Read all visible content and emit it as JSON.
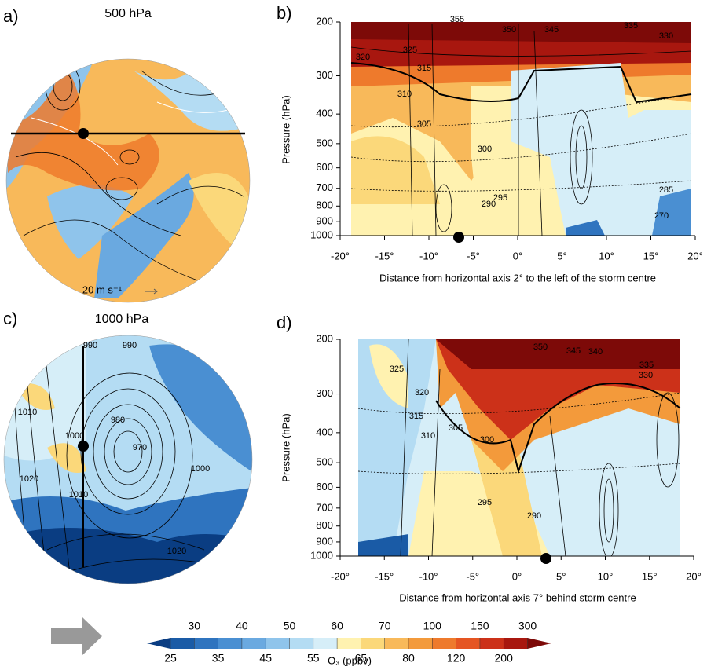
{
  "colorbar": {
    "label": "O₃ (ppbv)",
    "bounds": [
      25,
      30,
      35,
      40,
      45,
      50,
      55,
      60,
      65,
      70,
      80,
      100,
      120,
      150,
      200,
      300
    ],
    "colors": [
      "#0a3d82",
      "#1a5ba6",
      "#2f74bf",
      "#4a8fd2",
      "#6aa9e0",
      "#8fc4eb",
      "#b4dcf3",
      "#d6eef8",
      "#fff2b0",
      "#fbd87a",
      "#f8b95a",
      "#f39a3b",
      "#ee7a2c",
      "#e55522",
      "#cc3119",
      "#a8170f",
      "#7d0a08"
    ]
  },
  "section_axes": {
    "xlim": [
      -20,
      20
    ],
    "xticks": [
      {
        "value": -20,
        "label": "-20°"
      },
      {
        "value": -15,
        "label": "-15°"
      },
      {
        "value": -10,
        "label": "-10°"
      },
      {
        "value": -5,
        "label": "-5°"
      },
      {
        "value": 0,
        "label": "0°"
      },
      {
        "value": 5,
        "label": "5°"
      },
      {
        "value": 10,
        "label": "10°"
      },
      {
        "value": 15,
        "label": "15°"
      },
      {
        "value": 20,
        "label": "20°"
      }
    ],
    "ylim": [
      200,
      1000
    ],
    "yticks": [
      200,
      300,
      400,
      500,
      600,
      700,
      800,
      900,
      1000
    ],
    "log_y": true
  },
  "panels": [
    {
      "label": "a)",
      "title": "500 hPa",
      "note": "20 m s⁻¹"
    },
    {
      "label": "b)",
      "ylabel": "Pressure (hPa)",
      "xlabel": "Distance from horizontal axis 2° to the left of the storm centre",
      "contour_labels": [
        355,
        350,
        345,
        335,
        330,
        325,
        320,
        315,
        310,
        305,
        300,
        295,
        290,
        285,
        270
      ]
    },
    {
      "label": "c)",
      "title": "1000 hPa",
      "contour_labels": [
        990,
        990,
        980,
        970,
        1000,
        1010,
        1020,
        1000,
        1010,
        1020
      ]
    },
    {
      "label": "d)",
      "ylabel": "Pressure (hPa)",
      "xlabel": "Distance from horizontal axis 7° behind storm centre",
      "contour_labels": [
        350,
        345,
        340,
        335,
        330,
        325,
        320,
        315,
        310,
        305,
        300,
        295,
        290
      ]
    }
  ]
}
